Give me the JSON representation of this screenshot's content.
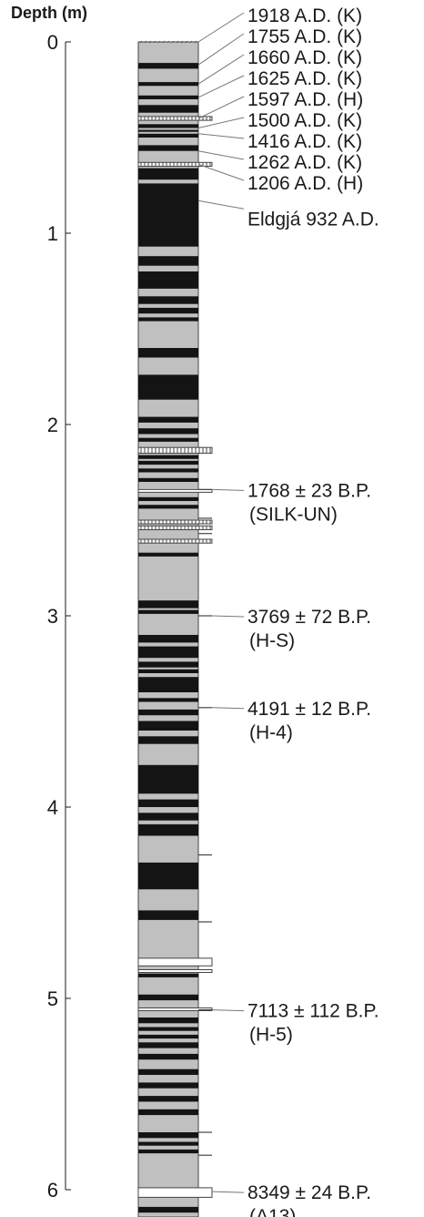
{
  "axis": {
    "title": "Depth (m)",
    "ticks": [
      "0",
      "1",
      "2",
      "3",
      "4",
      "5",
      "6"
    ]
  },
  "colors": {
    "background": "#c0c0c0",
    "dark": "#141414",
    "light": "#ffffff",
    "outline": "#444444",
    "text": "#1a1a1a"
  },
  "layers": {
    "dark": [
      [
        0.11,
        0.14
      ],
      [
        0.21,
        0.23
      ],
      [
        0.28,
        0.3
      ],
      [
        0.33,
        0.37
      ],
      [
        0.43,
        0.45
      ],
      [
        0.46,
        0.47
      ],
      [
        0.48,
        0.5
      ],
      [
        0.54,
        0.57
      ],
      [
        0.66,
        0.72
      ],
      [
        0.74,
        1.07
      ],
      [
        1.12,
        1.17
      ],
      [
        1.2,
        1.29
      ],
      [
        1.33,
        1.37
      ],
      [
        1.39,
        1.42
      ],
      [
        1.44,
        1.46
      ],
      [
        1.6,
        1.65
      ],
      [
        1.74,
        1.87
      ],
      [
        1.96,
        1.99
      ],
      [
        2.02,
        2.05
      ],
      [
        2.07,
        2.09
      ],
      [
        2.16,
        2.18
      ],
      [
        2.19,
        2.21
      ],
      [
        2.23,
        2.25
      ],
      [
        2.28,
        2.3
      ],
      [
        2.38,
        2.4
      ],
      [
        2.42,
        2.44
      ],
      [
        2.67,
        2.69
      ],
      [
        2.92,
        2.96
      ],
      [
        2.97,
        2.99
      ],
      [
        3.1,
        3.14
      ],
      [
        3.16,
        3.22
      ],
      [
        3.24,
        3.27
      ],
      [
        3.28,
        3.3
      ],
      [
        3.32,
        3.4
      ],
      [
        3.43,
        3.45
      ],
      [
        3.49,
        3.52
      ],
      [
        3.55,
        3.6
      ],
      [
        3.63,
        3.67
      ],
      [
        3.78,
        3.93
      ],
      [
        3.96,
        4.0
      ],
      [
        4.03,
        4.07
      ],
      [
        4.09,
        4.15
      ],
      [
        4.29,
        4.43
      ],
      [
        4.54,
        4.59
      ],
      [
        4.87,
        4.89
      ],
      [
        4.98,
        5.01
      ],
      [
        5.1,
        5.13
      ],
      [
        5.15,
        5.17
      ],
      [
        5.19,
        5.21
      ],
      [
        5.23,
        5.26
      ],
      [
        5.29,
        5.32
      ],
      [
        5.37,
        5.4
      ],
      [
        5.44,
        5.47
      ],
      [
        5.51,
        5.54
      ],
      [
        5.58,
        5.61
      ],
      [
        5.7,
        5.73
      ],
      [
        5.75,
        5.77
      ],
      [
        5.79,
        5.81
      ],
      [
        6.09,
        6.12
      ],
      [
        6.17,
        6.2
      ]
    ],
    "white": [
      [
        2.34,
        2.35
      ],
      [
        4.79,
        4.83
      ],
      [
        4.85,
        4.86
      ],
      [
        5.05,
        5.06
      ],
      [
        5.99,
        6.04
      ]
    ],
    "tephra": [
      [
        0.39,
        0.41
      ],
      [
        0.63,
        0.65
      ],
      [
        2.12,
        2.15
      ],
      [
        2.5,
        2.51
      ],
      [
        2.53,
        2.55
      ],
      [
        2.6,
        2.62
      ]
    ],
    "thin_ticks": [
      2.34,
      2.49,
      2.57,
      3.0,
      3.48,
      4.25,
      4.6,
      5.06,
      5.7,
      5.82
    ]
  },
  "labels": [
    {
      "text": "1918 A.D. (K)",
      "depth": 0.0
    },
    {
      "text": "1755 A.D. (K)",
      "depth": 0.12
    },
    {
      "text": "1660 A.D. (K)",
      "depth": 0.22
    },
    {
      "text": "1625 A.D. (K)",
      "depth": 0.29
    },
    {
      "text": "1597 A.D. (H)",
      "depth": 0.4
    },
    {
      "text": "1500 A.D. (K)",
      "depth": 0.45
    },
    {
      "text": "1416 A.D. (K)",
      "depth": 0.48
    },
    {
      "text": "1262 A.D. (K)",
      "depth": 0.57
    },
    {
      "text": "1206 A.D. (H)",
      "depth": 0.64
    },
    {
      "text": "Eldgjá 932 A.D.",
      "depth": 0.83
    },
    {
      "text": "1768 ± 23 B.P.",
      "subtext": "(SILK-UN)",
      "depth": 2.34
    },
    {
      "text": "3769 ± 72 B.P.",
      "subtext": "(H-S)",
      "depth": 3.0
    },
    {
      "text": "4191 ± 12 B.P.",
      "subtext": "(H-4)",
      "depth": 3.48
    },
    {
      "text": "7113 ± 112 B.P.",
      "subtext": "(H-5)",
      "depth": 5.06
    },
    {
      "text": "8349 ± 24 B.P.",
      "subtext": "(A13)",
      "depth": 6.01
    }
  ]
}
